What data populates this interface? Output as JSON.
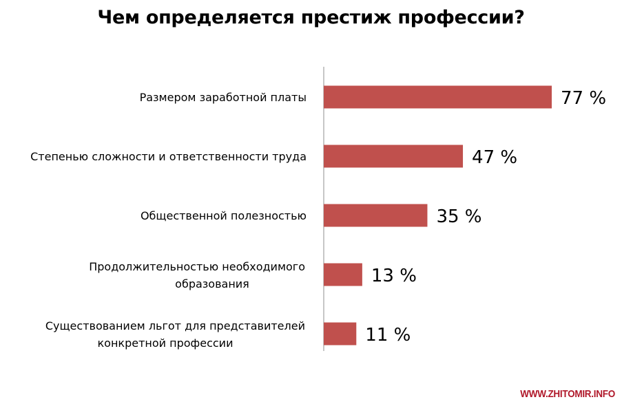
{
  "chart_data": {
    "type": "bar",
    "orientation": "horizontal",
    "title": "Чем определяется престиж профессии?",
    "categories": [
      [
        "Размером заработной платы"
      ],
      [
        "Степенью сложности и ответственности труда"
      ],
      [
        "Общественной полезностью"
      ],
      [
        "Продолжительностью необходимого",
        "образования"
      ],
      [
        "Существованием льгот для представителей",
        "конкретной профессии"
      ]
    ],
    "values": [
      77,
      47,
      35,
      13,
      11
    ],
    "value_labels": [
      "77 %",
      "47 %",
      "35 %",
      "13 %",
      "11 %"
    ],
    "unit": "%",
    "xlim": [
      0,
      77
    ],
    "grid": false,
    "bar_color": "#c0504d"
  },
  "watermark": "WWW.ZHITOMIR.INFO"
}
